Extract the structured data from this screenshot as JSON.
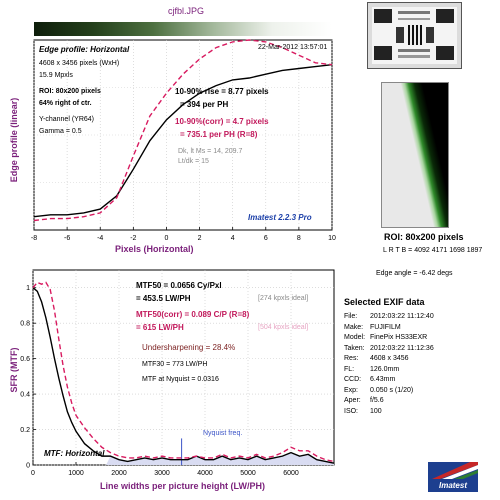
{
  "header": {
    "filename": "cjfbl.JPG"
  },
  "top_chart": {
    "title": "Edge profile: Horizontal",
    "date": "22-Mar-2012 13:57:01",
    "info": [
      "4608 x 3456 pixels (WxH)",
      "15.9 Mpxls"
    ],
    "roi": [
      "ROI: 80x200 pixels",
      "64% right of ctr."
    ],
    "channel": [
      "Y-channel  (YR64)",
      "Gamma = 0.5"
    ],
    "rise1": "10-90% rise = 8.77 pixels",
    "rise1b": "= 394 per PH",
    "rise2": "10-90%(corr) = 4.7 pixels",
    "rise2b": "= 735.1 per PH   (R=8)",
    "dk": "Dk, lt Ms = 14, 209.7",
    "lt": "Lt/dk = 15",
    "version": "Imatest 2.2.3 Pro",
    "ylabel": "Edge profile (linear)",
    "xlabel": "Pixels (Horizontal)",
    "xticks": [
      "-8",
      "-6",
      "-4",
      "-2",
      "0",
      "2",
      "4",
      "6",
      "8",
      "10"
    ]
  },
  "roi_panel": {
    "label": "ROI: 80x200 pixels",
    "coords": "L R T B = 4092 4171  1698 1897",
    "edge_angle": "Edge angle = -6.42 degs"
  },
  "bottom_chart": {
    "mtf50": "MTF50 = 0.0656 Cy/Pxl",
    "mtf50b": "= 453.5 LW/PH",
    "ideal1": "[274 kpxls ideal]",
    "mtf50corr": "MTF50(corr) = 0.089 C/P  (R=8)",
    "mtf50corrb": "= 615 LW/PH",
    "ideal2": "[504 kpxls ideal]",
    "undersharp": "Undersharpening = 28.4%",
    "mtf30": "MTF30 = 773 LW/PH",
    "nyq": "MTF at Nyquist = 0.0316",
    "nyq_label": "Nyquist freq.",
    "title": "MTF: Horizontal",
    "ylabel": "SFR (MTF)",
    "xlabel": "Line widths per picture height (LW/PH)",
    "xticks": [
      "0",
      "1000",
      "2000",
      "3000",
      "4000",
      "5000",
      "6000"
    ],
    "yticks": [
      "0",
      "0.2",
      "0.4",
      "0.6",
      "0.8",
      "1"
    ]
  },
  "exif": {
    "title": "Selected EXIF data",
    "rows": [
      {
        "k": "File:",
        "v": "2012:03:22 11:12:40"
      },
      {
        "k": "Make:",
        "v": "FUJIFILM"
      },
      {
        "k": "Model:",
        "v": "FinePix HS33EXR"
      },
      {
        "k": "Taken:",
        "v": "2012:03:22 11:12:36"
      },
      {
        "k": "Res:",
        "v": "4608 x 3456"
      },
      {
        "k": "FL:",
        "v": "126.0mm"
      },
      {
        "k": "CCD:",
        "v": "6.43mm"
      },
      {
        "k": "Exp:",
        "v": "0.050 s  (1/20)"
      },
      {
        "k": "Aper:",
        "v": "f/5.6"
      },
      {
        "k": "ISO:",
        "v": "100"
      }
    ]
  },
  "logo": {
    "text": "Imatest"
  },
  "colors": {
    "measured": "#000000",
    "corrected": "#d81b60",
    "nyquist": "#3b54c7",
    "label_purple": "#7a1f7a"
  },
  "chart_data": [
    {
      "type": "line",
      "title": "Edge profile: Horizontal",
      "xlabel": "Pixels (Horizontal)",
      "ylabel": "Edge profile (linear)",
      "xlim": [
        -8,
        10
      ],
      "ylim": [
        0,
        1
      ],
      "series": [
        {
          "x": [
            -8,
            -7,
            -6,
            -5,
            -4,
            -3,
            -2,
            -1,
            0,
            1,
            2,
            3,
            4,
            5,
            6,
            7,
            8,
            9,
            10
          ],
          "values": [
            0.07,
            0.08,
            0.08,
            0.09,
            0.11,
            0.18,
            0.32,
            0.47,
            0.58,
            0.66,
            0.72,
            0.76,
            0.79,
            0.8,
            0.82,
            0.84,
            0.85,
            0.86,
            0.87
          ]
        },
        {
          "x": [
            -8,
            -7,
            -6,
            -5,
            -4,
            -3,
            -2,
            -1,
            0,
            1,
            2,
            3,
            4,
            5,
            6,
            7,
            8,
            9,
            10
          ],
          "values": [
            0.05,
            0.06,
            0.06,
            0.07,
            0.09,
            0.17,
            0.39,
            0.6,
            0.72,
            0.82,
            0.9,
            0.96,
            0.99,
            1.0,
            0.99,
            0.96,
            0.92,
            0.88,
            0.87
          ]
        }
      ]
    },
    {
      "type": "line",
      "title": "MTF: Horizontal",
      "xlabel": "Line widths per picture height (LW/PH)",
      "ylabel": "SFR (MTF)",
      "xlim": [
        0,
        7000
      ],
      "ylim": [
        0,
        1.1
      ],
      "nyquist": 3456,
      "series": [
        {
          "x": [
            0,
            100,
            200,
            300,
            400,
            500,
            600,
            700,
            800,
            900,
            1000,
            1200,
            1400,
            1600,
            1800,
            2000,
            2200,
            2400,
            2600,
            2800,
            3000,
            3200,
            3400,
            3600,
            3800,
            4000,
            4200,
            4400,
            4600,
            4800,
            5000,
            5200,
            5400,
            5600,
            5800,
            6000,
            6200,
            6400,
            6600,
            6800,
            7000
          ],
          "values": [
            1.0,
            0.98,
            0.92,
            0.83,
            0.72,
            0.6,
            0.49,
            0.39,
            0.3,
            0.24,
            0.19,
            0.12,
            0.08,
            0.05,
            0.05,
            0.03,
            0.02,
            0.03,
            0.04,
            0.03,
            0.04,
            0.03,
            0.03,
            0.03,
            0.05,
            0.03,
            0.03,
            0.05,
            0.03,
            0.04,
            0.03,
            0.05,
            0.03,
            0.04,
            0.05,
            0.07,
            0.05,
            0.06,
            0.03,
            0.02,
            0.01
          ]
        },
        {
          "x": [
            0,
            100,
            200,
            300,
            400,
            500,
            600,
            700,
            800,
            900,
            1000,
            1200,
            1400,
            1600,
            1800,
            2000,
            2200,
            2400,
            2600,
            2800,
            3000,
            3200,
            3400,
            3600,
            3800,
            4000,
            4200,
            4400,
            4600,
            4800,
            5000,
            5200,
            5400,
            5600,
            5800,
            6000,
            6200,
            6400,
            6600,
            6800,
            7000
          ],
          "values": [
            1.0,
            1.03,
            1.02,
            1.03,
            0.99,
            0.87,
            0.71,
            0.56,
            0.44,
            0.35,
            0.28,
            0.21,
            0.15,
            0.1,
            0.07,
            0.05,
            0.04,
            0.04,
            0.05,
            0.04,
            0.05,
            0.04,
            0.04,
            0.04,
            0.05,
            0.04,
            0.04,
            0.06,
            0.04,
            0.05,
            0.04,
            0.06,
            0.04,
            0.05,
            0.07,
            0.1,
            0.08,
            0.08,
            0.05,
            0.03,
            0.02
          ]
        }
      ]
    }
  ]
}
